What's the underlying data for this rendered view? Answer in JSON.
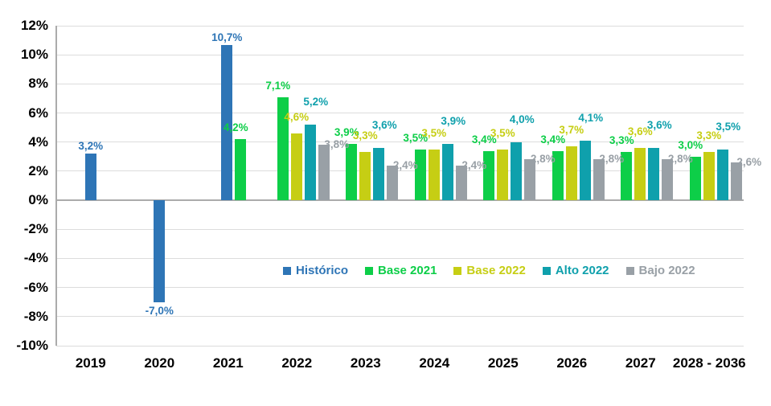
{
  "chart_data": {
    "type": "bar",
    "title": "",
    "categories": [
      "2019",
      "2020",
      "2021",
      "2022",
      "2023",
      "2024",
      "2025",
      "2026",
      "2027",
      "2028 - 2036"
    ],
    "series": [
      {
        "name": "Histórico",
        "color": "#2E75B6",
        "values": [
          3.2,
          -7.0,
          10.7,
          null,
          null,
          null,
          null,
          null,
          null,
          null
        ]
      },
      {
        "name": "Base 2021",
        "color": "#0DCE48",
        "values": [
          null,
          null,
          4.2,
          7.1,
          3.9,
          3.5,
          3.4,
          3.4,
          3.3,
          3.0
        ]
      },
      {
        "name": "Base 2022",
        "color": "#C6CE14",
        "values": [
          null,
          null,
          null,
          4.6,
          3.3,
          3.5,
          3.5,
          3.7,
          3.6,
          3.3
        ]
      },
      {
        "name": "Alto 2022",
        "color": "#0FA0AC",
        "values": [
          null,
          null,
          null,
          5.2,
          3.6,
          3.9,
          4.0,
          4.1,
          3.6,
          3.5
        ]
      },
      {
        "name": "Bajo 2022",
        "color": "#99A0A6",
        "values": [
          null,
          null,
          null,
          3.8,
          2.4,
          2.4,
          2.8,
          2.8,
          2.8,
          2.6
        ]
      }
    ],
    "ylim": [
      -10,
      12
    ],
    "ytick_step": 2,
    "ytick_suffix": "%",
    "value_suffix": "%",
    "decimal_separator": ",",
    "grid": true,
    "legend_position": "inside-bottom",
    "legend": [
      "Histórico",
      "Base 2021",
      "Base 2022",
      "Alto 2022",
      "Bajo 2022"
    ],
    "colors": {
      "gridline": "#DCDCDC",
      "zero_line": "#ABABAB",
      "axis_line": "#ABABAB",
      "tick_text": "#000000",
      "background": "#FFFFFF"
    }
  }
}
